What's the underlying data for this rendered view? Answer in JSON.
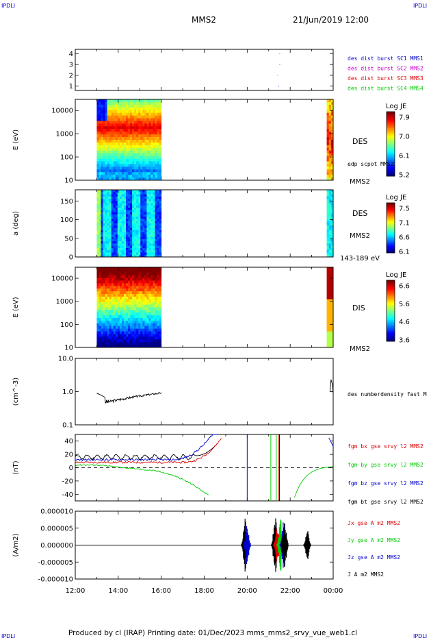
{
  "header": {
    "title": "MMS2",
    "datetime": "21/Jun/2019 12:00",
    "corner_label": "IPDLI"
  },
  "footer": {
    "text": "Produced by cl (IRAP)   Printing date: 01/Dec/2023   mms_mms2_srvy_vue_web1.cl"
  },
  "chart_data": [
    {
      "type": "scatter",
      "panel": "spacecraft",
      "yticks": [
        "1",
        "2",
        "3",
        "4"
      ],
      "ylim": [
        0.6,
        4.4
      ],
      "legend": [
        {
          "label": "des dist burst SC1 MMS1",
          "color": "#0000cc"
        },
        {
          "label": "des dist burst SC2 MMS2",
          "color": "#cc00cc"
        },
        {
          "label": "des dist burst SC3 MMS3",
          "color": "#dd0000"
        },
        {
          "label": "des dist burst SC4 MMS4",
          "color": "#00cc00"
        }
      ]
    },
    {
      "type": "heatmap",
      "panel": "des-energy",
      "ylabel": "E (eV)",
      "yscale": "log",
      "ylim": [
        10,
        30000
      ],
      "yticks": [
        "10",
        "100",
        "1000",
        "10000"
      ],
      "labels": [
        "DES",
        "edp scpot MMS2",
        "MMS2"
      ],
      "colorbar": {
        "title": "Log JE",
        "ticks": [
          "7.9",
          "7.0",
          "6.1",
          "5.2"
        ]
      }
    },
    {
      "type": "heatmap",
      "panel": "des-pitch",
      "ylabel": "a (deg)",
      "ylim": [
        0,
        180
      ],
      "yticks": [
        "0",
        "50",
        "100",
        "150"
      ],
      "labels": [
        "DES",
        "MMS2",
        "143-189 eV"
      ],
      "colorbar": {
        "title": "Log JE",
        "ticks": [
          "7.5",
          "7.1",
          "6.6",
          "6.1"
        ]
      }
    },
    {
      "type": "heatmap",
      "panel": "dis-energy",
      "ylabel": "E (eV)",
      "yscale": "log",
      "ylim": [
        10,
        30000
      ],
      "yticks": [
        "10",
        "100",
        "1000",
        "10000"
      ],
      "labels": [
        "DIS",
        "MMS2"
      ],
      "colorbar": {
        "title": "Log JE",
        "ticks": [
          "6.6",
          "5.6",
          "4.6",
          "3.6"
        ]
      }
    },
    {
      "type": "line",
      "panel": "density",
      "ylabel": "(cm^-3)",
      "yscale": "log",
      "ylim": [
        0.1,
        10
      ],
      "yticks": [
        "0.1",
        "1.0",
        "10.0"
      ],
      "series": [
        {
          "name": "des numberdensity fast M",
          "color": "#000000"
        }
      ]
    },
    {
      "type": "line",
      "panel": "magnetic-field",
      "ylabel": "(nT)",
      "ylim": [
        -50,
        50
      ],
      "yticks": [
        "-40",
        "-20",
        "0",
        "20",
        "40"
      ],
      "series": [
        {
          "name": "fgm bx gse srvy l2 MMS2",
          "color": "#dd0000"
        },
        {
          "name": "fgm by gse srvy l2 MMS2",
          "color": "#00cc00"
        },
        {
          "name": "fgm bz gse srvy l2 MMS2",
          "color": "#0000cc"
        },
        {
          "name": "fgm bt gse srvy l2 MMS2",
          "color": "#000000"
        }
      ]
    },
    {
      "type": "line",
      "panel": "current-density",
      "ylabel": "(A/m2)",
      "ylim": [
        -1e-05,
        1e-05
      ],
      "yticks": [
        "-0.000010",
        "-0.000005",
        "0.000000",
        "0.000005",
        "0.000010"
      ],
      "series": [
        {
          "name": "Jx gse A m2 MMS2",
          "color": "#dd0000"
        },
        {
          "name": "Jy gse A m2 MMS2",
          "color": "#00cc00"
        },
        {
          "name": "Jz gse A m2 MMS2",
          "color": "#0000cc"
        },
        {
          "name": "J A m2 MMS2",
          "color": "#000000"
        }
      ]
    }
  ],
  "x_axis": {
    "ticks": [
      "12:00",
      "14:00",
      "16:00",
      "18:00",
      "20:00",
      "22:00",
      "00:00"
    ]
  }
}
